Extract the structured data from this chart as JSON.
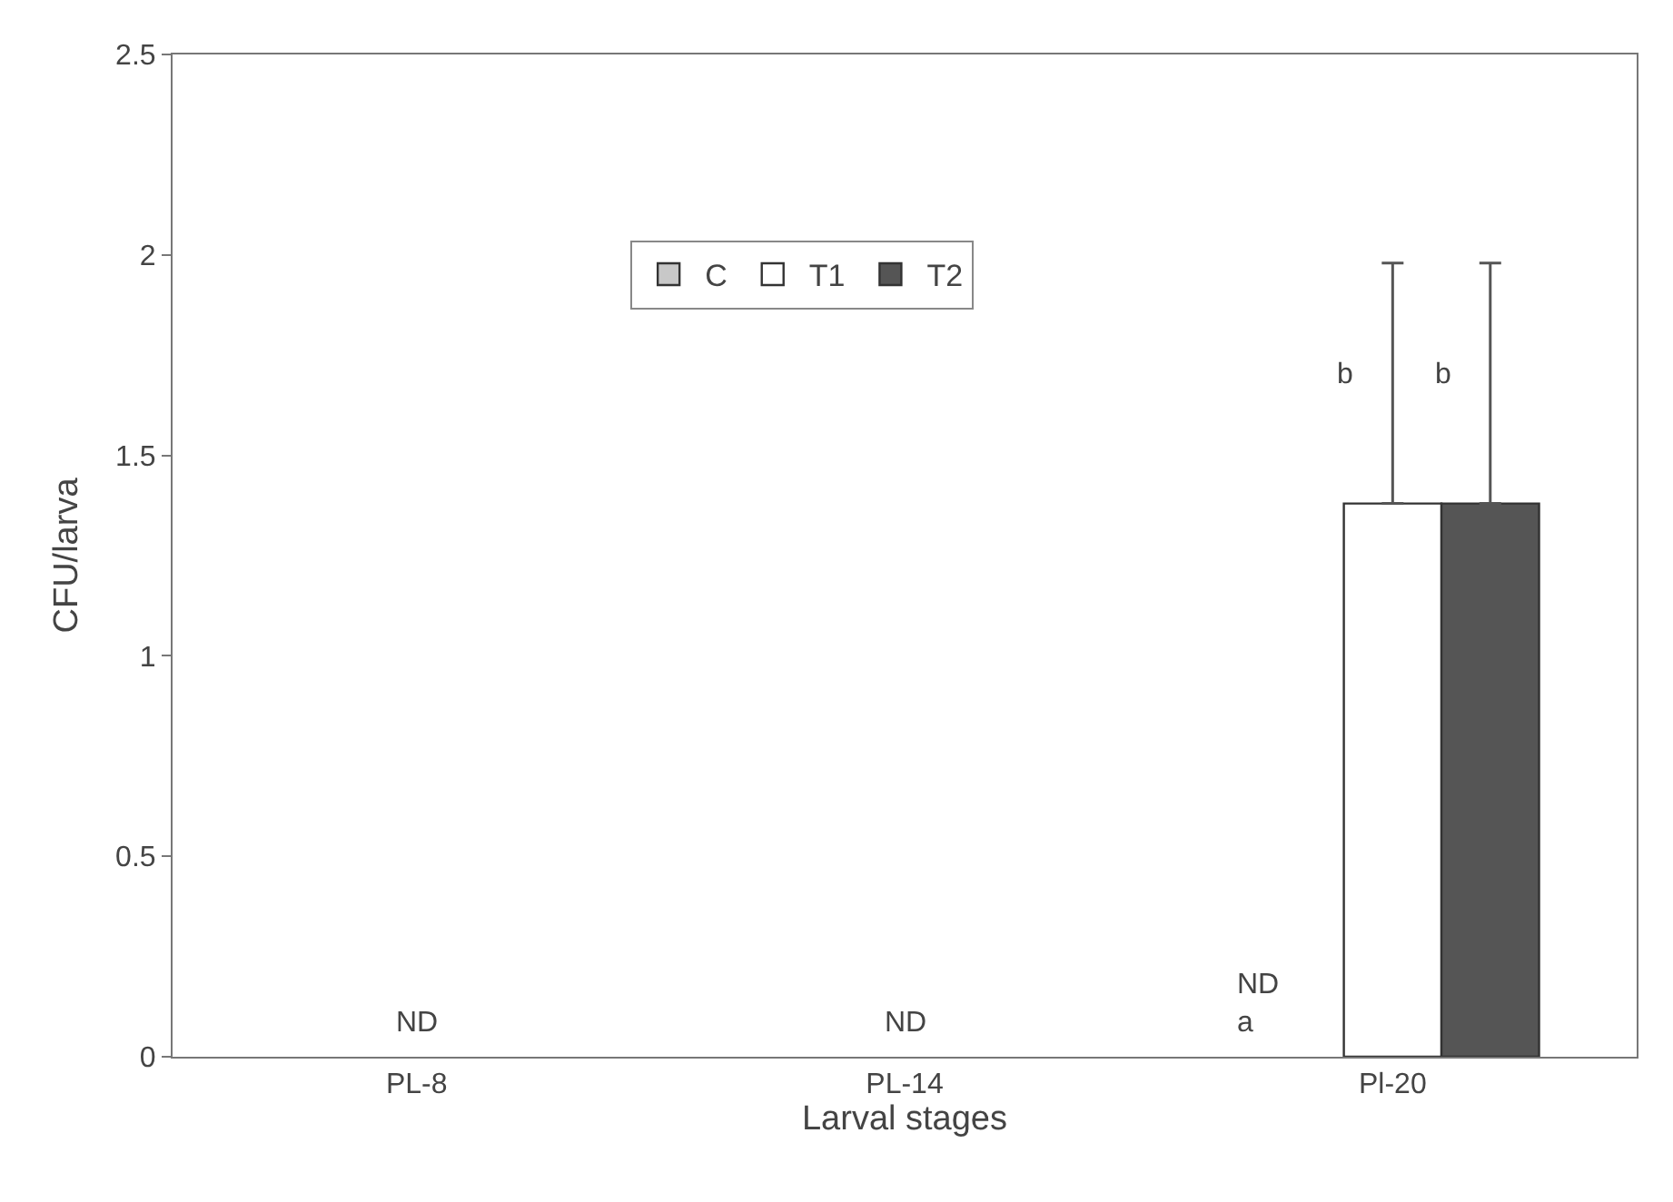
{
  "chart_data": {
    "type": "bar",
    "xlabel": "Larval stages",
    "ylabel": "CFU/larva",
    "categories": [
      "PL-8",
      "PL-14",
      "Pl-20"
    ],
    "series": [
      {
        "name": "C",
        "color": "#c8c8c8",
        "values": [
          null,
          null,
          null
        ]
      },
      {
        "name": "T1",
        "color": "#ffffff",
        "values": [
          null,
          null,
          1.38
        ],
        "errors": [
          null,
          null,
          0.6
        ]
      },
      {
        "name": "T2",
        "color": "#555555",
        "values": [
          null,
          null,
          1.38
        ],
        "errors": [
          null,
          null,
          0.6
        ]
      }
    ],
    "ylim": [
      0,
      2.5
    ],
    "yticks": [
      0,
      0.5,
      1,
      1.5,
      2,
      2.5
    ],
    "legend": "top",
    "annotations": [
      "ND",
      "ND",
      "ND\na",
      {
        "text": "b",
        "x": "Pl-20",
        "y": 1.7
      },
      {
        "text": "b",
        "x": "Pl-20",
        "y": 1.7
      }
    ]
  }
}
